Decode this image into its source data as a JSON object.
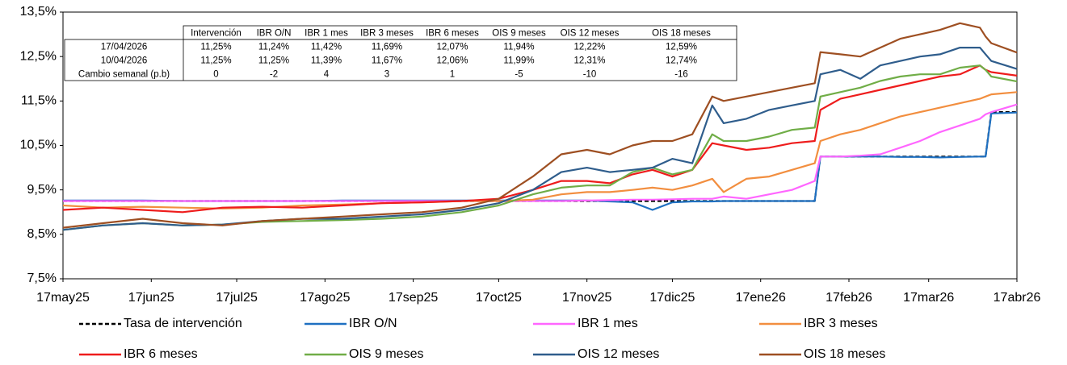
{
  "chart_data": {
    "type": "line",
    "x": [
      0,
      14,
      28,
      42,
      56,
      70,
      84,
      98,
      112,
      126,
      140,
      153,
      165,
      175,
      184,
      192,
      200,
      207,
      214,
      221,
      228,
      232,
      240,
      248,
      256,
      264,
      266,
      273,
      280,
      287,
      294,
      301,
      308,
      315,
      322,
      324,
      326,
      335
    ],
    "xlim": [
      0,
      335
    ],
    "xticks": [
      {
        "value": 0,
        "label": "17may25"
      },
      {
        "value": 31,
        "label": "17jun25"
      },
      {
        "value": 61,
        "label": "17jul25"
      },
      {
        "value": 92,
        "label": "17ago25"
      },
      {
        "value": 123,
        "label": "17sep25"
      },
      {
        "value": 153,
        "label": "17oct25"
      },
      {
        "value": 184,
        "label": "17nov25"
      },
      {
        "value": 214,
        "label": "17dic25"
      },
      {
        "value": 245,
        "label": "17ene26"
      },
      {
        "value": 276,
        "label": "17feb26"
      },
      {
        "value": 304,
        "label": "17mar26"
      },
      {
        "value": 335,
        "label": "17abr26"
      }
    ],
    "ylim": [
      7.5,
      13.5
    ],
    "yticks": [
      {
        "value": 7.5,
        "label": "7,5%"
      },
      {
        "value": 8.5,
        "label": "8,5%"
      },
      {
        "value": 9.5,
        "label": "9,5%"
      },
      {
        "value": 10.5,
        "label": "10,5%"
      },
      {
        "value": 11.5,
        "label": "11,5%"
      },
      {
        "value": 12.5,
        "label": "12,5%"
      },
      {
        "value": 13.5,
        "label": "13,5%"
      }
    ],
    "series": [
      {
        "name": "Tasa de intervención",
        "color": "#000000",
        "dashed": true,
        "values": [
          9.25,
          9.25,
          9.25,
          9.25,
          9.25,
          9.25,
          9.25,
          9.25,
          9.25,
          9.25,
          9.25,
          9.25,
          9.25,
          9.25,
          9.25,
          9.25,
          9.25,
          9.25,
          9.25,
          9.25,
          9.25,
          9.25,
          9.25,
          9.25,
          9.25,
          9.25,
          10.25,
          10.25,
          10.25,
          10.25,
          10.25,
          10.25,
          10.25,
          10.25,
          10.25,
          10.25,
          11.25,
          11.25
        ]
      },
      {
        "name": "IBR O/N",
        "color": "#1f70c1",
        "values": [
          9.26,
          9.26,
          9.26,
          9.25,
          9.25,
          9.25,
          9.25,
          9.26,
          9.26,
          9.26,
          9.26,
          9.26,
          9.26,
          9.26,
          9.26,
          9.24,
          9.22,
          9.05,
          9.22,
          9.24,
          9.24,
          9.25,
          9.25,
          9.25,
          9.25,
          9.25,
          10.25,
          10.25,
          10.25,
          10.25,
          10.24,
          10.24,
          10.23,
          10.24,
          10.25,
          10.25,
          11.22,
          11.24
        ]
      },
      {
        "name": "IBR 1 mes",
        "color": "#ff66ff",
        "values": [
          9.25,
          9.25,
          9.25,
          9.25,
          9.25,
          9.25,
          9.25,
          9.25,
          9.25,
          9.25,
          9.25,
          9.25,
          9.25,
          9.25,
          9.26,
          9.27,
          9.28,
          9.28,
          9.29,
          9.3,
          9.3,
          9.35,
          9.3,
          9.4,
          9.5,
          9.7,
          10.25,
          10.25,
          10.27,
          10.3,
          10.45,
          10.6,
          10.8,
          10.95,
          11.1,
          11.2,
          11.25,
          11.42
        ]
      },
      {
        "name": "IBR 3 meses",
        "color": "#f28e3f",
        "values": [
          9.15,
          9.1,
          9.12,
          9.1,
          9.08,
          9.1,
          9.15,
          9.17,
          9.2,
          9.22,
          9.25,
          9.25,
          9.28,
          9.4,
          9.45,
          9.45,
          9.5,
          9.55,
          9.5,
          9.6,
          9.75,
          9.45,
          9.75,
          9.8,
          9.95,
          10.1,
          10.6,
          10.75,
          10.85,
          11.0,
          11.15,
          11.25,
          11.35,
          11.45,
          11.55,
          11.6,
          11.65,
          11.7
        ]
      },
      {
        "name": "IBR 6 meses",
        "color": "#ee1c1c",
        "values": [
          9.05,
          9.1,
          9.05,
          9.0,
          9.1,
          9.12,
          9.1,
          9.15,
          9.2,
          9.22,
          9.25,
          9.3,
          9.5,
          9.7,
          9.7,
          9.65,
          9.85,
          9.95,
          9.8,
          9.95,
          10.55,
          10.5,
          10.4,
          10.45,
          10.55,
          10.6,
          11.3,
          11.55,
          11.65,
          11.75,
          11.85,
          11.95,
          12.05,
          12.1,
          12.3,
          12.2,
          12.15,
          12.07
        ]
      },
      {
        "name": "OIS 9 meses",
        "color": "#70ad47",
        "values": [
          8.6,
          8.7,
          8.75,
          8.7,
          8.72,
          8.78,
          8.8,
          8.82,
          8.85,
          8.9,
          9.0,
          9.15,
          9.4,
          9.55,
          9.6,
          9.6,
          9.9,
          10.0,
          9.85,
          9.95,
          10.75,
          10.6,
          10.6,
          10.7,
          10.85,
          10.9,
          11.6,
          11.7,
          11.8,
          11.95,
          12.05,
          12.1,
          12.1,
          12.25,
          12.3,
          12.2,
          12.05,
          11.94
        ]
      },
      {
        "name": "OIS 12 meses",
        "color": "#2f5d8c",
        "values": [
          8.6,
          8.7,
          8.75,
          8.7,
          8.72,
          8.8,
          8.85,
          8.85,
          8.9,
          8.95,
          9.05,
          9.2,
          9.5,
          9.9,
          10.0,
          9.9,
          9.95,
          10.0,
          10.2,
          10.1,
          11.4,
          11.0,
          11.1,
          11.3,
          11.4,
          11.5,
          12.1,
          12.2,
          12.0,
          12.3,
          12.4,
          12.5,
          12.55,
          12.7,
          12.7,
          12.55,
          12.4,
          12.22
        ]
      },
      {
        "name": "OIS 18 meses",
        "color": "#9e4f22",
        "values": [
          8.65,
          8.75,
          8.85,
          8.75,
          8.7,
          8.8,
          8.85,
          8.9,
          8.95,
          9.0,
          9.1,
          9.3,
          9.8,
          10.3,
          10.4,
          10.3,
          10.5,
          10.6,
          10.6,
          10.75,
          11.6,
          11.5,
          11.6,
          11.7,
          11.8,
          11.9,
          12.6,
          12.55,
          12.5,
          12.7,
          12.9,
          13.0,
          13.1,
          13.25,
          13.15,
          12.95,
          12.8,
          12.59
        ]
      }
    ]
  },
  "table": {
    "columns": [
      "Intervención",
      "IBR O/N",
      "IBR 1 mes",
      "IBR 3 meses",
      "IBR 6 meses",
      "OIS 9 meses",
      "OIS 12 meses",
      "OIS 18 meses"
    ],
    "rows": [
      {
        "label": "17/04/2026",
        "cells": [
          "11,25%",
          "11,24%",
          "11,42%",
          "11,69%",
          "12,07%",
          "11,94%",
          "12,22%",
          "12,59%"
        ]
      },
      {
        "label": "10/04/2026",
        "cells": [
          "11,25%",
          "11,25%",
          "11,39%",
          "11,67%",
          "12,06%",
          "11,99%",
          "12,31%",
          "12,74%"
        ]
      },
      {
        "label": "Cambio semanal (p.b)",
        "cells": [
          "0",
          "-2",
          "4",
          "3",
          "1",
          "-5",
          "-10",
          "-16"
        ]
      }
    ]
  }
}
